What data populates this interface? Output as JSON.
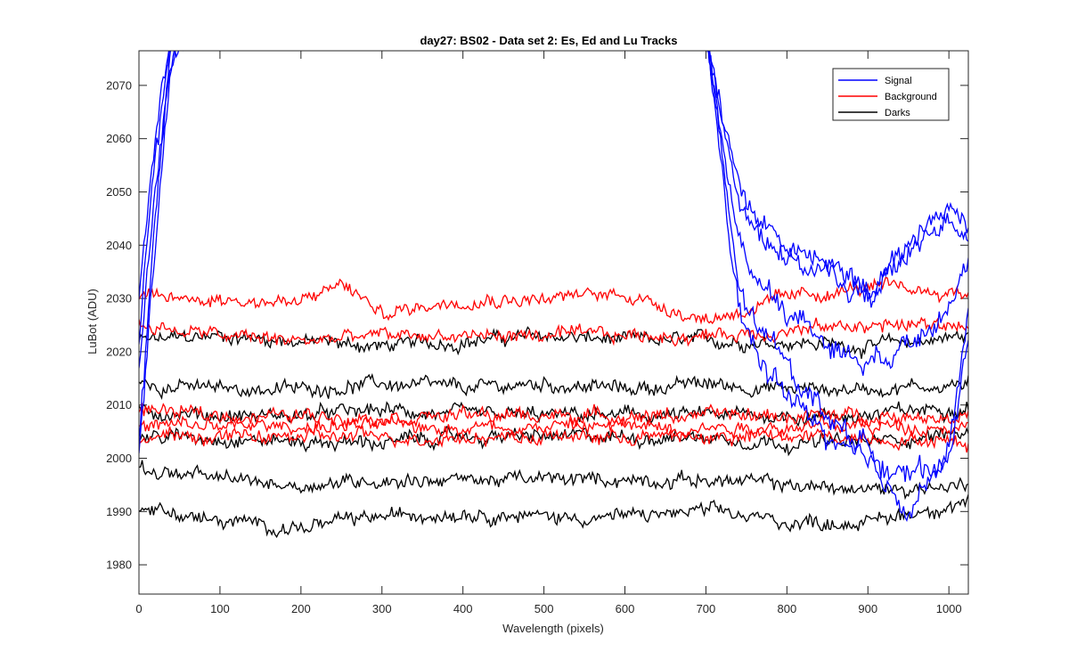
{
  "chart_data": {
    "type": "line",
    "title": "day27: BS02 - Data set 2: Es, Ed and Lu Tracks",
    "xlabel": "Wavelength (pixels)",
    "ylabel": "LuBot (ADU)",
    "xlim": [
      0,
      1024
    ],
    "ylim": [
      1974.5,
      2076.5
    ],
    "xticks": [
      0,
      100,
      200,
      300,
      400,
      500,
      600,
      700,
      800,
      900,
      1000
    ],
    "yticks": [
      1980,
      1990,
      2000,
      2010,
      2020,
      2030,
      2040,
      2050,
      2060,
      2070
    ],
    "legend": {
      "position": "top-right",
      "entries": [
        {
          "label": "Signal",
          "color": "#0000ff"
        },
        {
          "label": "Background",
          "color": "#ff0000"
        },
        {
          "label": "Darks",
          "color": "#000000"
        }
      ]
    },
    "series": [
      {
        "group": "Signal",
        "color": "#0000ff",
        "x": [
          0,
          20,
          40,
          60,
          700,
          740,
          760,
          800,
          850,
          900,
          950,
          1000,
          1024
        ],
        "y": [
          2000,
          2040,
          2075,
          2080,
          2080,
          2032,
          2025,
          2018,
          2008,
          2002,
          1996,
          2000,
          2022
        ]
      },
      {
        "group": "Signal",
        "color": "#0000ff",
        "x": [
          0,
          20,
          40,
          60,
          700,
          740,
          760,
          800,
          850,
          900,
          950,
          1000,
          1024
        ],
        "y": [
          2005,
          2045,
          2078,
          2080,
          2080,
          2028,
          2020,
          2012,
          2004,
          1998,
          1991,
          2001,
          2028
        ]
      },
      {
        "group": "Signal",
        "color": "#0000ff",
        "x": [
          0,
          20,
          40,
          60,
          700,
          740,
          760,
          800,
          850,
          900,
          950,
          1000,
          1024
        ],
        "y": [
          2015,
          2050,
          2075,
          2080,
          2080,
          2040,
          2035,
          2028,
          2022,
          2018,
          2022,
          2030,
          2036
        ]
      },
      {
        "group": "Signal",
        "color": "#0000ff",
        "x": [
          0,
          20,
          40,
          60,
          700,
          740,
          760,
          800,
          850,
          900,
          950,
          1000,
          1024
        ],
        "y": [
          2022,
          2055,
          2078,
          2080,
          2080,
          2048,
          2044,
          2038,
          2034,
          2030,
          2038,
          2046,
          2042
        ]
      },
      {
        "group": "Signal",
        "color": "#0000ff",
        "x": [
          0,
          20,
          40,
          60,
          700,
          740,
          760,
          800,
          850,
          900,
          950,
          1000,
          1024
        ],
        "y": [
          2032,
          2060,
          2080,
          2080,
          2080,
          2052,
          2046,
          2040,
          2036,
          2032,
          2040,
          2048,
          2044
        ]
      },
      {
        "group": "Background",
        "color": "#ff0000",
        "x": [
          0,
          100,
          200,
          250,
          300,
          400,
          500,
          600,
          700,
          800,
          900,
          1024
        ],
        "y": [
          2030,
          2030,
          2029,
          2033,
          2027,
          2030,
          2030,
          2031,
          2026,
          2030,
          2032,
          2031
        ]
      },
      {
        "group": "Background",
        "color": "#ff0000",
        "x": [
          0,
          100,
          200,
          300,
          400,
          500,
          600,
          700,
          800,
          900,
          1024
        ],
        "y": [
          2025,
          2023,
          2022,
          2023,
          2023,
          2023,
          2023,
          2023,
          2024,
          2025,
          2025
        ]
      },
      {
        "group": "Background",
        "color": "#ff0000",
        "x": [
          0,
          100,
          200,
          300,
          400,
          500,
          600,
          700,
          800,
          900,
          1024
        ],
        "y": [
          2009,
          2008,
          2008,
          2008,
          2008,
          2008,
          2008,
          2008,
          2008,
          2008,
          2008
        ]
      },
      {
        "group": "Background",
        "color": "#ff0000",
        "x": [
          0,
          100,
          200,
          300,
          400,
          500,
          600,
          700,
          800,
          900,
          1024
        ],
        "y": [
          2006,
          2006,
          2006,
          2006,
          2006,
          2006,
          2006,
          2006,
          2006,
          2006,
          2006
        ]
      },
      {
        "group": "Background",
        "color": "#ff0000",
        "x": [
          0,
          100,
          200,
          300,
          400,
          500,
          600,
          700,
          800,
          900,
          1024
        ],
        "y": [
          2004,
          2004,
          2004,
          2004,
          2004,
          2004,
          2004,
          2004,
          2004,
          2004,
          2003
        ]
      },
      {
        "group": "Darks",
        "color": "#000000",
        "x": [
          0,
          100,
          200,
          300,
          400,
          500,
          600,
          700,
          800,
          900,
          1024
        ],
        "y": [
          2022,
          2023,
          2022,
          2021,
          2022,
          2023,
          2022,
          2022,
          2022,
          2021,
          2023
        ]
      },
      {
        "group": "Darks",
        "color": "#000000",
        "x": [
          0,
          100,
          200,
          300,
          400,
          500,
          600,
          700,
          800,
          900,
          1024
        ],
        "y": [
          2014,
          2013,
          2013,
          2014,
          2013,
          2014,
          2013,
          2014,
          2013,
          2013,
          2014
        ]
      },
      {
        "group": "Darks",
        "color": "#000000",
        "x": [
          0,
          100,
          200,
          300,
          400,
          500,
          600,
          700,
          800,
          900,
          1024
        ],
        "y": [
          2009,
          2008,
          2008,
          2009,
          2008,
          2008,
          2008,
          2008,
          2008,
          2008,
          2010
        ]
      },
      {
        "group": "Darks",
        "color": "#000000",
        "x": [
          0,
          100,
          200,
          300,
          400,
          500,
          600,
          700,
          800,
          900,
          1024
        ],
        "y": [
          2004,
          2004,
          2003,
          2003,
          2004,
          2004,
          2004,
          2004,
          2003,
          2003,
          2005
        ]
      },
      {
        "group": "Darks",
        "color": "#000000",
        "x": [
          0,
          100,
          200,
          300,
          400,
          500,
          600,
          700,
          800,
          900,
          1024
        ],
        "y": [
          1998,
          1996,
          1995,
          1996,
          1996,
          1996,
          1996,
          1996,
          1995,
          1994,
          1995
        ]
      },
      {
        "group": "Darks",
        "color": "#000000",
        "x": [
          0,
          100,
          200,
          300,
          400,
          500,
          600,
          700,
          800,
          900,
          1024
        ],
        "y": [
          1991,
          1988,
          1987,
          1989,
          1990,
          1989,
          1989,
          1990,
          1988,
          1988,
          1992
        ]
      }
    ]
  }
}
